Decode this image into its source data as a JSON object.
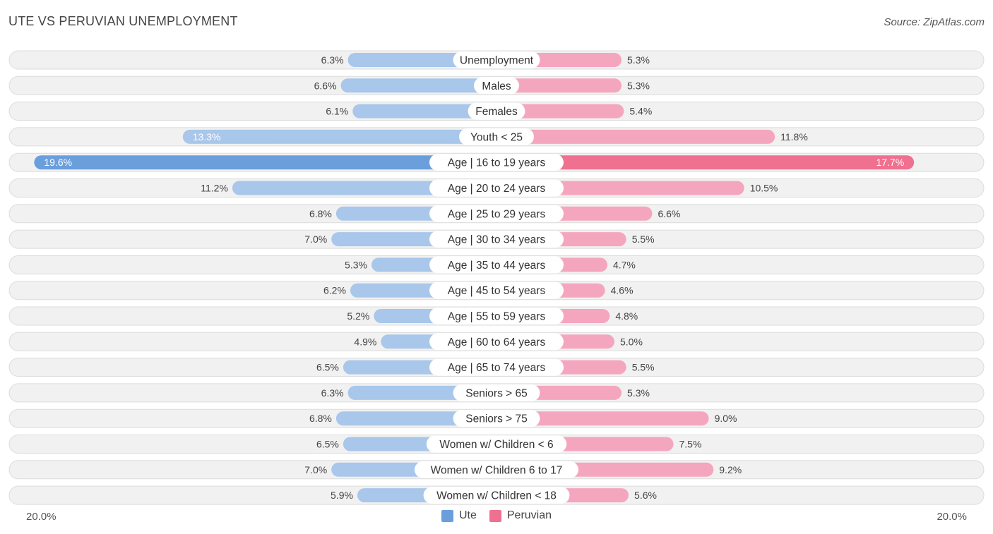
{
  "title": "UTE VS PERUVIAN UNEMPLOYMENT",
  "source": "Source: ZipAtlas.com",
  "colors": {
    "ute": "#6a9fdc",
    "ute_light": "#a8c7ea",
    "peruvian": "#f0708f",
    "peruvian_light": "#f5a6bf",
    "row_bg": "#f1f1f1",
    "row_border": "#dcdcdc"
  },
  "chart_data": {
    "type": "bar",
    "orientation": "horizontal-diverging",
    "title": "UTE VS PERUVIAN UNEMPLOYMENT",
    "categories": [
      "Unemployment",
      "Males",
      "Females",
      "Youth < 25",
      "Age | 16 to 19 years",
      "Age | 20 to 24 years",
      "Age | 25 to 29 years",
      "Age | 30 to 34 years",
      "Age | 35 to 44 years",
      "Age | 45 to 54 years",
      "Age | 55 to 59 years",
      "Age | 60 to 64 years",
      "Age | 65 to 74 years",
      "Seniors > 65",
      "Seniors > 75",
      "Women w/ Children < 6",
      "Women w/ Children 6 to 17",
      "Women w/ Children < 18"
    ],
    "series": [
      {
        "name": "Ute",
        "values": [
          6.3,
          6.6,
          6.1,
          13.3,
          19.6,
          11.2,
          6.8,
          7.0,
          5.3,
          6.2,
          5.2,
          4.9,
          6.5,
          6.3,
          6.8,
          6.5,
          7.0,
          5.9
        ]
      },
      {
        "name": "Peruvian",
        "values": [
          5.3,
          5.3,
          5.4,
          11.8,
          17.7,
          10.5,
          6.6,
          5.5,
          4.7,
          4.6,
          4.8,
          5.0,
          5.5,
          5.3,
          9.0,
          7.5,
          9.2,
          5.6
        ]
      }
    ],
    "xlim": [
      -20.0,
      20.0
    ],
    "axis_labels": {
      "left": "20.0%",
      "right": "20.0%"
    },
    "value_suffix": "%",
    "legend": [
      "Ute",
      "Peruvian"
    ],
    "legend_position": "bottom-center"
  }
}
